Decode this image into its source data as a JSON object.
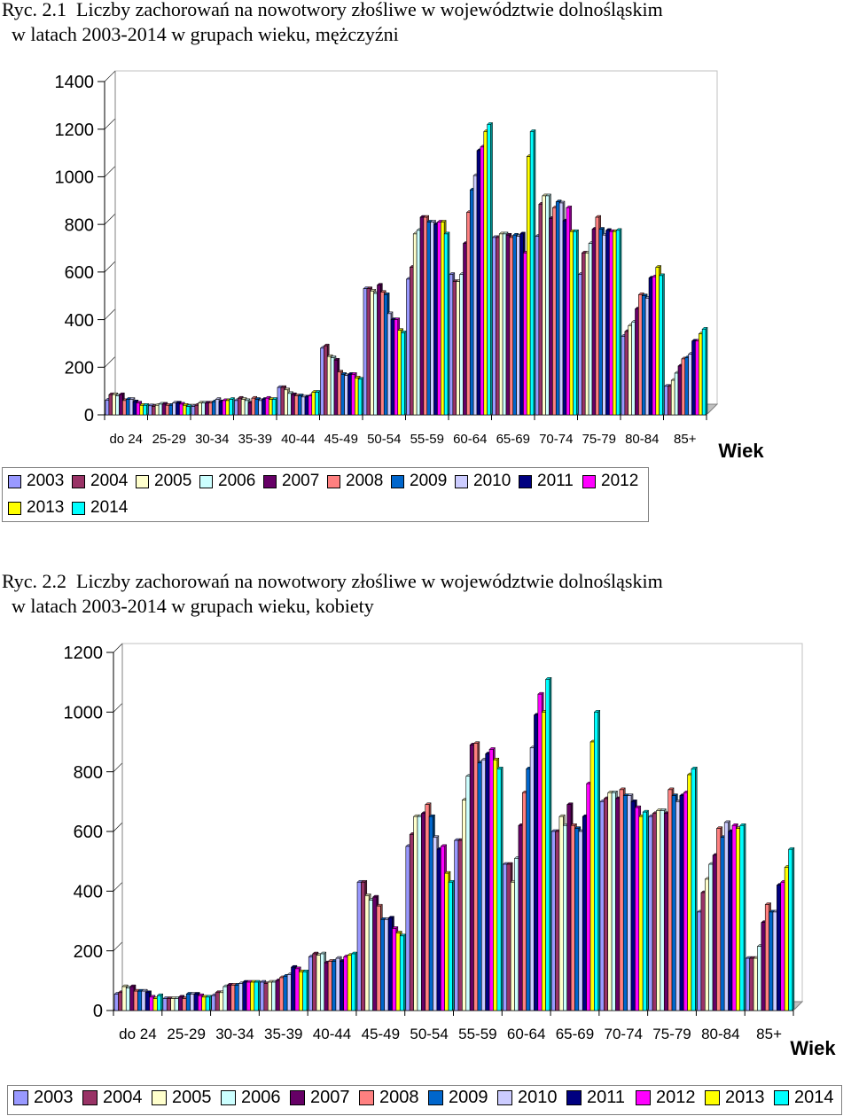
{
  "captions": {
    "c1_line1": "Ryc. 2.1  Liczby zachorowań na nowotwory złośliwe w województwie dolnośląskim",
    "c1_line2": "  w latach 2003-2014 w grupach wieku, mężczyźni",
    "c2_line1": "Ryc. 2.2  Liczby zachorowań na nowotwory złośliwe w województwie dolnośląskim",
    "c2_line2": "  w latach 2003-2014 w grupach wieku, kobiety"
  },
  "colors": {
    "2003": "#9999ff",
    "2004": "#993366",
    "2005": "#ffffcc",
    "2006": "#ccffff",
    "2007": "#660066",
    "2008": "#ff8080",
    "2009": "#0066cc",
    "2010": "#ccccff",
    "2011": "#000080",
    "2012": "#ff00ff",
    "2013": "#ffff00",
    "2014": "#00ffff"
  },
  "chart_data": [
    {
      "type": "bar",
      "xlabel": "Wiek",
      "ylim": [
        0,
        1400
      ],
      "yticks": [
        0,
        200,
        400,
        600,
        800,
        1000,
        1200,
        1400
      ],
      "categories": [
        "do 24",
        "25-29",
        "30-34",
        "35-39",
        "40-44",
        "45-49",
        "50-54",
        "55-59",
        "60-64",
        "65-69",
        "70-74",
        "75-79",
        "80-84",
        "85+"
      ],
      "legend_position": "bottom",
      "series": [
        {
          "name": "2003",
          "values": [
            62,
            38,
            35,
            60,
            115,
            280,
            530,
            570,
            590,
            745,
            750,
            590,
            330,
            120
          ]
        },
        {
          "name": "2004",
          "values": [
            85,
            35,
            40,
            70,
            115,
            290,
            530,
            620,
            560,
            745,
            885,
            680,
            350,
            120
          ]
        },
        {
          "name": "2005",
          "values": [
            85,
            40,
            50,
            65,
            105,
            245,
            520,
            760,
            560,
            760,
            920,
            680,
            375,
            145
          ]
        },
        {
          "name": "2006",
          "values": [
            80,
            45,
            50,
            60,
            90,
            240,
            510,
            775,
            590,
            760,
            920,
            720,
            390,
            175
          ]
        },
        {
          "name": "2007",
          "values": [
            85,
            45,
            50,
            50,
            85,
            230,
            545,
            830,
            720,
            755,
            825,
            780,
            445,
            205
          ]
        },
        {
          "name": "2008",
          "values": [
            60,
            40,
            50,
            70,
            80,
            180,
            515,
            830,
            850,
            745,
            870,
            830,
            505,
            235
          ]
        },
        {
          "name": "2009",
          "values": [
            65,
            40,
            55,
            65,
            80,
            170,
            505,
            810,
            945,
            755,
            895,
            780,
            500,
            240
          ]
        },
        {
          "name": "2010",
          "values": [
            65,
            50,
            65,
            60,
            75,
            165,
            425,
            810,
            1005,
            750,
            890,
            755,
            490,
            255
          ]
        },
        {
          "name": "2011",
          "values": [
            55,
            50,
            55,
            65,
            75,
            170,
            400,
            800,
            1110,
            760,
            815,
            775,
            575,
            310
          ]
        },
        {
          "name": "2012",
          "values": [
            50,
            45,
            60,
            70,
            80,
            170,
            400,
            810,
            1125,
            680,
            870,
            770,
            580,
            310
          ]
        },
        {
          "name": "2013",
          "values": [
            40,
            40,
            60,
            65,
            95,
            155,
            355,
            810,
            1190,
            1085,
            770,
            770,
            620,
            340
          ]
        },
        {
          "name": "2014",
          "values": [
            40,
            35,
            65,
            65,
            95,
            150,
            345,
            760,
            1220,
            1190,
            770,
            775,
            585,
            360
          ]
        }
      ]
    },
    {
      "type": "bar",
      "xlabel": "Wiek",
      "ylim": [
        0,
        1200
      ],
      "yticks": [
        0,
        200,
        400,
        600,
        800,
        1000,
        1200
      ],
      "categories": [
        "do 24",
        "25-29",
        "30-34",
        "35-39",
        "40-44",
        "45-49",
        "50-54",
        "55-59",
        "60-64",
        "65-69",
        "70-74",
        "75-79",
        "80-84",
        "85+"
      ],
      "legend_position": "bottom",
      "series": [
        {
          "name": "2003",
          "values": [
            55,
            40,
            50,
            95,
            180,
            430,
            550,
            570,
            490,
            600,
            700,
            650,
            330,
            175
          ]
        },
        {
          "name": "2004",
          "values": [
            60,
            40,
            60,
            90,
            190,
            430,
            590,
            570,
            490,
            600,
            710,
            660,
            395,
            175
          ]
        },
        {
          "name": "2005",
          "values": [
            80,
            40,
            60,
            95,
            185,
            385,
            650,
            705,
            430,
            650,
            730,
            670,
            440,
            175
          ]
        },
        {
          "name": "2006",
          "values": [
            75,
            40,
            80,
            95,
            190,
            370,
            650,
            785,
            510,
            620,
            730,
            670,
            490,
            215
          ]
        },
        {
          "name": "2007",
          "values": [
            80,
            45,
            85,
            100,
            160,
            380,
            660,
            890,
            620,
            690,
            710,
            660,
            520,
            295
          ]
        },
        {
          "name": "2008",
          "values": [
            65,
            40,
            85,
            110,
            165,
            350,
            690,
            895,
            730,
            620,
            740,
            740,
            610,
            355
          ]
        },
        {
          "name": "2009",
          "values": [
            65,
            55,
            85,
            115,
            165,
            305,
            650,
            830,
            810,
            610,
            720,
            720,
            580,
            330
          ]
        },
        {
          "name": "2010",
          "values": [
            65,
            55,
            90,
            120,
            175,
            305,
            580,
            840,
            880,
            600,
            720,
            700,
            630,
            330
          ]
        },
        {
          "name": "2011",
          "values": [
            60,
            55,
            95,
            145,
            165,
            310,
            540,
            860,
            990,
            650,
            700,
            720,
            600,
            420
          ]
        },
        {
          "name": "2012",
          "values": [
            45,
            50,
            95,
            140,
            180,
            275,
            550,
            875,
            1060,
            760,
            680,
            730,
            620,
            430
          ]
        },
        {
          "name": "2013",
          "values": [
            40,
            45,
            95,
            130,
            185,
            260,
            460,
            840,
            1000,
            900,
            650,
            790,
            610,
            480
          ]
        },
        {
          "name": "2014",
          "values": [
            50,
            45,
            95,
            130,
            190,
            250,
            430,
            810,
            1110,
            1000,
            665,
            810,
            620,
            540
          ]
        }
      ]
    }
  ]
}
